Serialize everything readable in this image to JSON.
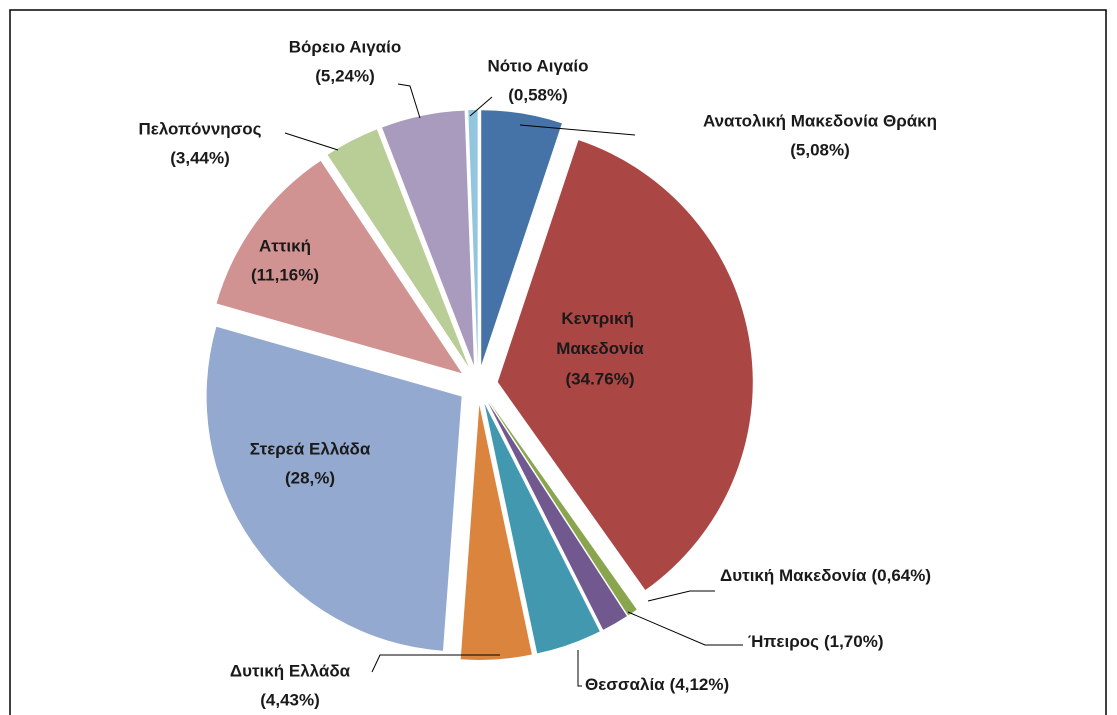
{
  "chart_data": {
    "type": "pie",
    "categories": [
      "Ανατολική Μακεδονία Θράκη",
      "Κεντρική Μακεδονία",
      "Δυτική Μακεδονία",
      "Ήπειρος",
      "Θεσσαλία",
      "Δυτική Ελλάδα",
      "Στερεά Ελλάδα",
      "Αττική",
      "Πελοπόννησος",
      "Βόρειο Αιγαίο",
      "Νότιο Αιγαίο"
    ],
    "values": [
      5.08,
      34.76,
      0.64,
      1.7,
      4.12,
      4.43,
      28,
      11.16,
      3.44,
      5.24,
      0.58
    ],
    "value_labels": [
      "(5,08%)",
      "(34.76%)",
      "(0,64%)",
      "(1,70%)",
      "(4,12%)",
      "(4,43%)",
      "(28,%)",
      "(11,16%)",
      "(3,44%)",
      "(5,24%)",
      "(0,58%)"
    ],
    "colors": [
      "#4572a7",
      "#aa4643",
      "#89a54e",
      "#71588f",
      "#4198af",
      "#db843d",
      "#93a9cf",
      "#d19392",
      "#b9cd96",
      "#a99bbd",
      "#92c5de"
    ]
  }
}
